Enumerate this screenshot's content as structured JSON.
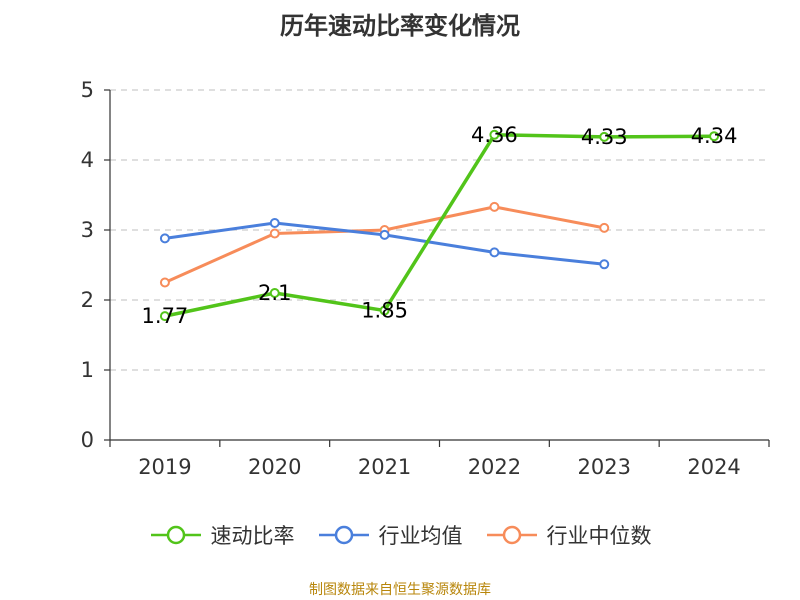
{
  "chart_data": {
    "type": "line",
    "title": "历年速动比率变化情况",
    "categories": [
      "2019",
      "2020",
      "2021",
      "2022",
      "2023",
      "2024"
    ],
    "ylim": [
      0,
      5
    ],
    "yticks": [
      "0",
      "1",
      "2",
      "3",
      "4",
      "5"
    ],
    "grid": true,
    "legend_placement": "bottom",
    "series": [
      {
        "name": "速动比率",
        "color": "#52c41a",
        "values": [
          1.77,
          2.1,
          1.85,
          4.36,
          4.33,
          4.34
        ],
        "labels": [
          "1.77",
          "2.1",
          "1.85",
          "4.36",
          "4.33",
          "4.34"
        ]
      },
      {
        "name": "行业均值",
        "color": "#4a7fdc",
        "values": [
          2.88,
          3.1,
          2.93,
          2.68,
          2.51,
          null
        ]
      },
      {
        "name": "行业中位数",
        "color": "#f78c5a",
        "values": [
          2.25,
          2.95,
          3.0,
          3.33,
          3.03,
          null
        ]
      }
    ]
  },
  "source": "制图数据来自恒生聚源数据库"
}
